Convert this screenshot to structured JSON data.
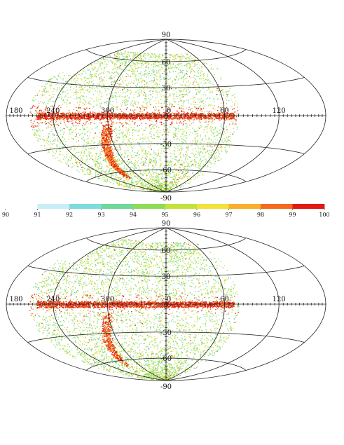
{
  "maps": [
    {
      "id": "top",
      "lat_labels": [
        "90",
        "60",
        "30",
        "0",
        "-30",
        "-60",
        "-90"
      ],
      "lon_labels": [
        "180",
        "120",
        "60",
        "0",
        "300",
        "240"
      ]
    },
    {
      "id": "bottom",
      "lat_labels": [
        "90",
        "60",
        "30",
        "0",
        "-30",
        "-60",
        "-90"
      ],
      "lon_labels": [
        "180",
        "120",
        "60",
        "0",
        "300",
        "240"
      ]
    }
  ],
  "colorbar": {
    "ticks": [
      "90",
      "91",
      "92",
      "93",
      "94",
      "95",
      "96",
      "97",
      "98",
      "99",
      "100"
    ],
    "min": 90,
    "max": 100,
    "colors": [
      "#ffffff",
      "#c8eef8",
      "#7fdcdc",
      "#6fd89a",
      "#8fdb55",
      "#c4e23c",
      "#f2e23a",
      "#f8b02c",
      "#f56a20",
      "#e21a14"
    ]
  }
}
